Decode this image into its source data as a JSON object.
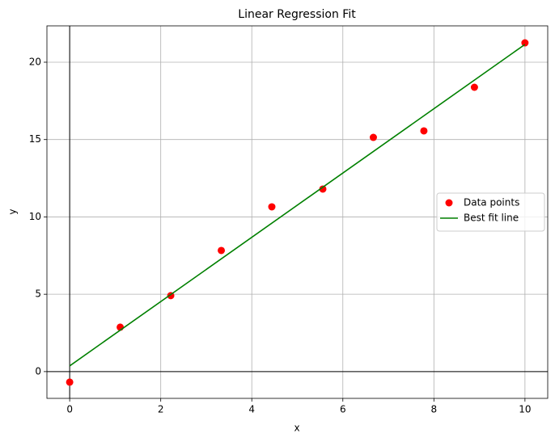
{
  "chart_data": {
    "type": "scatter",
    "title": "Linear Regression Fit",
    "x_label": "x",
    "y_label": "y",
    "series": [
      {
        "name": "Data points",
        "type": "scatter",
        "color": "#ff0000",
        "x": [
          0,
          1.11,
          2.22,
          3.33,
          4.44,
          5.56,
          6.67,
          7.78,
          8.89,
          10
        ],
        "values": [
          -0.68,
          2.87,
          4.91,
          7.83,
          10.65,
          11.8,
          15.14,
          15.56,
          18.38,
          21.25
        ]
      },
      {
        "name": "Best fit line",
        "type": "line",
        "color": "#008000",
        "x": [
          0,
          10
        ],
        "values": [
          0.37,
          21.15
        ]
      }
    ],
    "xlim": [
      -0.5,
      10.5
    ],
    "ylim": [
      -1.73,
      22.35
    ],
    "xticks": [
      0,
      2,
      4,
      6,
      8,
      10
    ],
    "yticks": [
      0,
      5,
      10,
      15,
      20
    ],
    "grid": true,
    "zero_lines": true,
    "legend": "center right"
  }
}
